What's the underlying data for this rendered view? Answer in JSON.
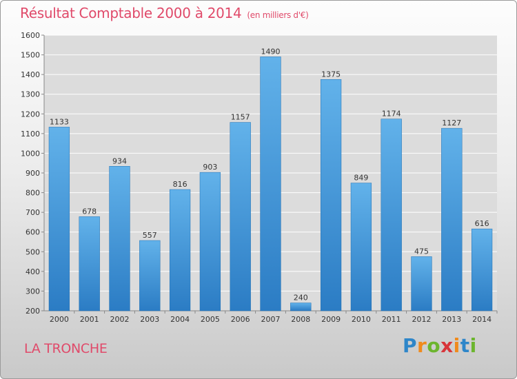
{
  "header": {
    "title": "Résultat Comptable 2000 à 2014",
    "subtitle": "(en milliers d'€)"
  },
  "place_name": "LA TRONCHE",
  "logo": {
    "text": "Proxiti",
    "letters": [
      "P",
      "r",
      "o",
      "x",
      "i",
      "t",
      "i"
    ],
    "colors": [
      "#2e86c9",
      "#f08a1c",
      "#6cb52e",
      "#d8343a",
      "#f08a1c",
      "#2e86c9",
      "#6cb52e"
    ]
  },
  "colors": {
    "title": "#e04a6a",
    "bar_top": "#62b2ea",
    "bar_bottom": "#2b7cc4",
    "grid": "#ffffff",
    "text": "#333333"
  },
  "chart_data": {
    "type": "bar",
    "categories": [
      "2000",
      "2001",
      "2002",
      "2003",
      "2004",
      "2005",
      "2006",
      "2007",
      "2008",
      "2009",
      "2010",
      "2011",
      "2012",
      "2013",
      "2014"
    ],
    "values": [
      1133,
      678,
      934,
      557,
      816,
      903,
      1157,
      1490,
      240,
      1375,
      849,
      1174,
      475,
      1127,
      616
    ],
    "data_labels": [
      "1133",
      "678",
      "934",
      "557",
      "816",
      "903",
      "1157",
      "1490",
      "240",
      "1375",
      "849",
      "1174",
      "475",
      "1127",
      "616"
    ],
    "yticks": [
      200,
      300,
      400,
      500,
      600,
      700,
      800,
      900,
      1000,
      1100,
      1200,
      1300,
      1400,
      1500,
      1600
    ],
    "ylim": [
      200,
      1600
    ],
    "grid": true,
    "xlabel": "",
    "ylabel": ""
  }
}
